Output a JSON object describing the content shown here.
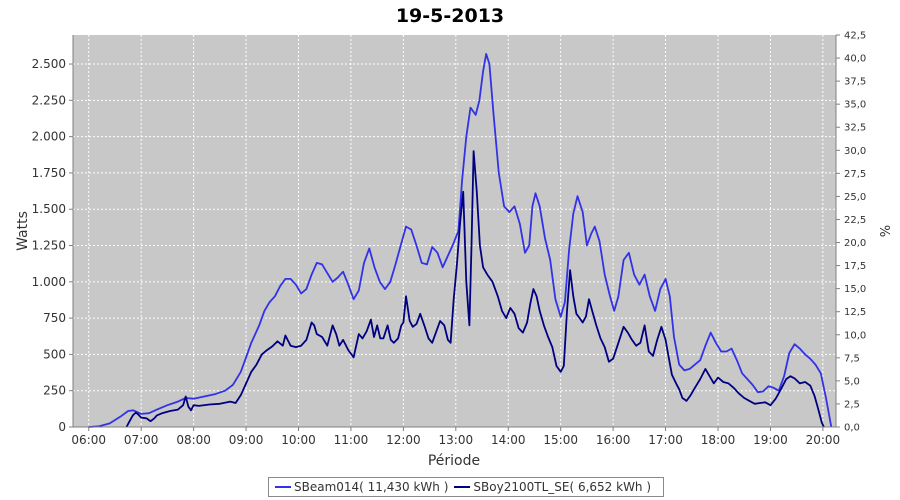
{
  "chart_data": {
    "type": "line",
    "title": "19-5-2013",
    "xlabel": "Période",
    "ylabel": "Watts",
    "y2label": "%",
    "x_tick_labels": [
      "06:00",
      "07:00",
      "08:00",
      "09:00",
      "10:00",
      "11:00",
      "12:00",
      "13:00",
      "14:00",
      "15:00",
      "16:00",
      "17:00",
      "18:00",
      "19:00",
      "20:00"
    ],
    "x_range_hours": [
      5.7,
      20.25
    ],
    "ylim": [
      0,
      2700
    ],
    "y_ticks": [
      0,
      250,
      500,
      750,
      1000,
      1250,
      1500,
      1750,
      2000,
      2250,
      2500
    ],
    "y_tick_labels": [
      "0",
      "250",
      "500",
      "750",
      "1.000",
      "1.250",
      "1.500",
      "1.750",
      "2.000",
      "2.250",
      "2.500"
    ],
    "y2lim": [
      0,
      42.5
    ],
    "y2_tick_labels": [
      "0,0",
      "2,5",
      "5,0",
      "7,5",
      "10,0",
      "12,5",
      "15,0",
      "17,5",
      "20,0",
      "22,5",
      "25,0",
      "27,5",
      "30,0",
      "32,5",
      "35,0",
      "37,5",
      "40,0",
      "42,5"
    ],
    "grid": true,
    "legend_position": "bottom",
    "series": [
      {
        "name": "SBeam014( 11,430 kWh )",
        "color": "#3232e6",
        "points": [
          [
            6.0,
            0
          ],
          [
            6.2,
            5
          ],
          [
            6.4,
            25
          ],
          [
            6.6,
            70
          ],
          [
            6.75,
            110
          ],
          [
            6.85,
            115
          ],
          [
            7.0,
            90
          ],
          [
            7.15,
            95
          ],
          [
            7.3,
            120
          ],
          [
            7.5,
            150
          ],
          [
            7.7,
            175
          ],
          [
            7.85,
            200
          ],
          [
            8.0,
            195
          ],
          [
            8.2,
            210
          ],
          [
            8.4,
            225
          ],
          [
            8.6,
            250
          ],
          [
            8.75,
            290
          ],
          [
            8.9,
            380
          ],
          [
            9.0,
            480
          ],
          [
            9.1,
            580
          ],
          [
            9.25,
            700
          ],
          [
            9.35,
            800
          ],
          [
            9.45,
            860
          ],
          [
            9.55,
            900
          ],
          [
            9.65,
            970
          ],
          [
            9.75,
            1020
          ],
          [
            9.85,
            1020
          ],
          [
            9.95,
            980
          ],
          [
            10.05,
            920
          ],
          [
            10.15,
            950
          ],
          [
            10.25,
            1050
          ],
          [
            10.35,
            1130
          ],
          [
            10.45,
            1120
          ],
          [
            10.55,
            1060
          ],
          [
            10.65,
            1000
          ],
          [
            10.75,
            1030
          ],
          [
            10.85,
            1070
          ],
          [
            10.95,
            980
          ],
          [
            11.05,
            880
          ],
          [
            11.15,
            940
          ],
          [
            11.25,
            1130
          ],
          [
            11.35,
            1230
          ],
          [
            11.45,
            1100
          ],
          [
            11.55,
            1000
          ],
          [
            11.65,
            950
          ],
          [
            11.75,
            1000
          ],
          [
            11.85,
            1120
          ],
          [
            11.95,
            1250
          ],
          [
            12.05,
            1380
          ],
          [
            12.15,
            1360
          ],
          [
            12.25,
            1250
          ],
          [
            12.35,
            1130
          ],
          [
            12.45,
            1120
          ],
          [
            12.55,
            1240
          ],
          [
            12.65,
            1200
          ],
          [
            12.75,
            1100
          ],
          [
            12.85,
            1180
          ],
          [
            12.95,
            1260
          ],
          [
            13.05,
            1350
          ],
          [
            13.12,
            1700
          ],
          [
            13.2,
            2000
          ],
          [
            13.28,
            2200
          ],
          [
            13.38,
            2150
          ],
          [
            13.45,
            2250
          ],
          [
            13.52,
            2450
          ],
          [
            13.58,
            2570
          ],
          [
            13.64,
            2500
          ],
          [
            13.72,
            2150
          ],
          [
            13.82,
            1750
          ],
          [
            13.92,
            1520
          ],
          [
            14.02,
            1480
          ],
          [
            14.12,
            1520
          ],
          [
            14.22,
            1400
          ],
          [
            14.32,
            1200
          ],
          [
            14.4,
            1250
          ],
          [
            14.46,
            1520
          ],
          [
            14.52,
            1610
          ],
          [
            14.6,
            1520
          ],
          [
            14.7,
            1300
          ],
          [
            14.8,
            1150
          ],
          [
            14.9,
            880
          ],
          [
            15.0,
            760
          ],
          [
            15.08,
            860
          ],
          [
            15.16,
            1220
          ],
          [
            15.24,
            1470
          ],
          [
            15.32,
            1590
          ],
          [
            15.42,
            1480
          ],
          [
            15.5,
            1250
          ],
          [
            15.58,
            1330
          ],
          [
            15.65,
            1380
          ],
          [
            15.74,
            1280
          ],
          [
            15.84,
            1050
          ],
          [
            15.94,
            900
          ],
          [
            16.02,
            800
          ],
          [
            16.1,
            900
          ],
          [
            16.2,
            1150
          ],
          [
            16.3,
            1200
          ],
          [
            16.4,
            1050
          ],
          [
            16.5,
            980
          ],
          [
            16.6,
            1050
          ],
          [
            16.7,
            900
          ],
          [
            16.8,
            800
          ],
          [
            16.9,
            950
          ],
          [
            17.0,
            1020
          ],
          [
            17.08,
            900
          ],
          [
            17.16,
            620
          ],
          [
            17.26,
            430
          ],
          [
            17.36,
            390
          ],
          [
            17.46,
            400
          ],
          [
            17.56,
            430
          ],
          [
            17.66,
            460
          ],
          [
            17.76,
            560
          ],
          [
            17.86,
            650
          ],
          [
            17.96,
            580
          ],
          [
            18.06,
            520
          ],
          [
            18.16,
            520
          ],
          [
            18.26,
            540
          ],
          [
            18.36,
            460
          ],
          [
            18.46,
            370
          ],
          [
            18.56,
            330
          ],
          [
            18.66,
            290
          ],
          [
            18.76,
            240
          ],
          [
            18.86,
            245
          ],
          [
            18.96,
            280
          ],
          [
            19.06,
            270
          ],
          [
            19.16,
            250
          ],
          [
            19.26,
            350
          ],
          [
            19.36,
            510
          ],
          [
            19.46,
            570
          ],
          [
            19.56,
            540
          ],
          [
            19.66,
            500
          ],
          [
            19.76,
            470
          ],
          [
            19.86,
            430
          ],
          [
            19.96,
            370
          ],
          [
            20.06,
            200
          ],
          [
            20.16,
            0
          ]
        ]
      },
      {
        "name": "SBoy2100TL_SE( 6,652 kWh )",
        "color": "#000080",
        "points": [
          [
            6.72,
            0
          ],
          [
            6.78,
            40
          ],
          [
            6.84,
            80
          ],
          [
            6.9,
            100
          ],
          [
            6.95,
            85
          ],
          [
            7.0,
            65
          ],
          [
            7.1,
            60
          ],
          [
            7.18,
            40
          ],
          [
            7.25,
            60
          ],
          [
            7.3,
            80
          ],
          [
            7.4,
            95
          ],
          [
            7.55,
            110
          ],
          [
            7.7,
            120
          ],
          [
            7.8,
            150
          ],
          [
            7.85,
            210
          ],
          [
            7.9,
            140
          ],
          [
            7.95,
            115
          ],
          [
            8.0,
            150
          ],
          [
            8.1,
            145
          ],
          [
            8.3,
            155
          ],
          [
            8.5,
            160
          ],
          [
            8.7,
            175
          ],
          [
            8.8,
            165
          ],
          [
            8.9,
            220
          ],
          [
            9.0,
            300
          ],
          [
            9.1,
            380
          ],
          [
            9.2,
            430
          ],
          [
            9.3,
            500
          ],
          [
            9.4,
            530
          ],
          [
            9.5,
            555
          ],
          [
            9.6,
            590
          ],
          [
            9.7,
            560
          ],
          [
            9.75,
            630
          ],
          [
            9.85,
            560
          ],
          [
            9.95,
            550
          ],
          [
            10.05,
            560
          ],
          [
            10.15,
            600
          ],
          [
            10.25,
            720
          ],
          [
            10.3,
            700
          ],
          [
            10.35,
            640
          ],
          [
            10.45,
            620
          ],
          [
            10.55,
            560
          ],
          [
            10.65,
            700
          ],
          [
            10.72,
            640
          ],
          [
            10.78,
            560
          ],
          [
            10.85,
            600
          ],
          [
            10.95,
            530
          ],
          [
            11.05,
            480
          ],
          [
            11.15,
            640
          ],
          [
            11.22,
            610
          ],
          [
            11.3,
            660
          ],
          [
            11.38,
            740
          ],
          [
            11.44,
            620
          ],
          [
            11.5,
            700
          ],
          [
            11.56,
            610
          ],
          [
            11.62,
            610
          ],
          [
            11.7,
            700
          ],
          [
            11.76,
            600
          ],
          [
            11.82,
            580
          ],
          [
            11.9,
            610
          ],
          [
            11.96,
            700
          ],
          [
            12.0,
            720
          ],
          [
            12.05,
            900
          ],
          [
            12.12,
            730
          ],
          [
            12.18,
            690
          ],
          [
            12.25,
            710
          ],
          [
            12.32,
            780
          ],
          [
            12.4,
            700
          ],
          [
            12.48,
            610
          ],
          [
            12.55,
            580
          ],
          [
            12.62,
            650
          ],
          [
            12.7,
            730
          ],
          [
            12.78,
            700
          ],
          [
            12.85,
            600
          ],
          [
            12.9,
            580
          ],
          [
            12.96,
            880
          ],
          [
            13.02,
            1120
          ],
          [
            13.08,
            1400
          ],
          [
            13.14,
            1620
          ],
          [
            13.2,
            1000
          ],
          [
            13.26,
            700
          ],
          [
            13.3,
            1250
          ],
          [
            13.34,
            1900
          ],
          [
            13.4,
            1620
          ],
          [
            13.46,
            1250
          ],
          [
            13.52,
            1100
          ],
          [
            13.6,
            1050
          ],
          [
            13.7,
            1000
          ],
          [
            13.8,
            900
          ],
          [
            13.88,
            800
          ],
          [
            13.96,
            750
          ],
          [
            14.04,
            820
          ],
          [
            14.12,
            780
          ],
          [
            14.2,
            680
          ],
          [
            14.28,
            650
          ],
          [
            14.36,
            720
          ],
          [
            14.42,
            850
          ],
          [
            14.48,
            950
          ],
          [
            14.54,
            900
          ],
          [
            14.6,
            800
          ],
          [
            14.68,
            700
          ],
          [
            14.76,
            620
          ],
          [
            14.84,
            550
          ],
          [
            14.92,
            420
          ],
          [
            15.0,
            380
          ],
          [
            15.06,
            420
          ],
          [
            15.12,
            800
          ],
          [
            15.18,
            1080
          ],
          [
            15.24,
            900
          ],
          [
            15.3,
            780
          ],
          [
            15.36,
            750
          ],
          [
            15.42,
            720
          ],
          [
            15.48,
            760
          ],
          [
            15.54,
            880
          ],
          [
            15.6,
            800
          ],
          [
            15.68,
            700
          ],
          [
            15.76,
            610
          ],
          [
            15.84,
            550
          ],
          [
            15.92,
            450
          ],
          [
            16.0,
            470
          ],
          [
            16.1,
            580
          ],
          [
            16.2,
            690
          ],
          [
            16.28,
            650
          ],
          [
            16.36,
            600
          ],
          [
            16.44,
            560
          ],
          [
            16.52,
            580
          ],
          [
            16.6,
            700
          ],
          [
            16.68,
            520
          ],
          [
            16.76,
            490
          ],
          [
            16.84,
            600
          ],
          [
            16.92,
            690
          ],
          [
            17.0,
            600
          ],
          [
            17.06,
            480
          ],
          [
            17.12,
            360
          ],
          [
            17.2,
            300
          ],
          [
            17.26,
            260
          ],
          [
            17.32,
            200
          ],
          [
            17.4,
            180
          ],
          [
            17.48,
            220
          ],
          [
            17.56,
            270
          ],
          [
            17.66,
            330
          ],
          [
            17.76,
            400
          ],
          [
            17.84,
            350
          ],
          [
            17.92,
            300
          ],
          [
            18.0,
            340
          ],
          [
            18.1,
            310
          ],
          [
            18.2,
            300
          ],
          [
            18.3,
            270
          ],
          [
            18.4,
            230
          ],
          [
            18.5,
            200
          ],
          [
            18.6,
            180
          ],
          [
            18.7,
            160
          ],
          [
            18.8,
            165
          ],
          [
            18.9,
            170
          ],
          [
            19.0,
            150
          ],
          [
            19.1,
            195
          ],
          [
            19.2,
            260
          ],
          [
            19.3,
            330
          ],
          [
            19.38,
            350
          ],
          [
            19.46,
            335
          ],
          [
            19.56,
            300
          ],
          [
            19.66,
            310
          ],
          [
            19.76,
            285
          ],
          [
            19.84,
            215
          ],
          [
            19.9,
            140
          ],
          [
            19.98,
            30
          ],
          [
            20.02,
            0
          ]
        ]
      }
    ]
  }
}
